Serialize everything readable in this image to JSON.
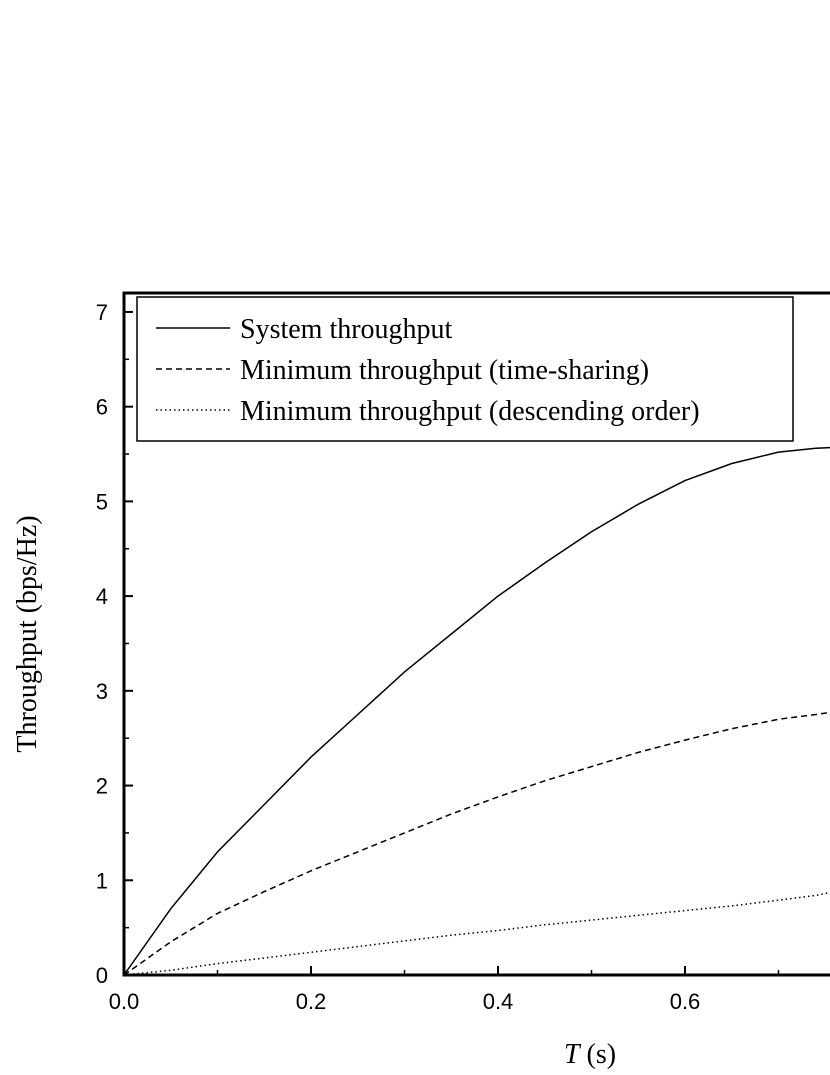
{
  "chart_data": {
    "type": "line",
    "title": "",
    "xlabel_var": "T",
    "xlabel_unit": " (s)",
    "ylabel": "Throughput (bps/Hz)",
    "xlim": [
      0.0,
      0.76
    ],
    "ylim": [
      0,
      7.2
    ],
    "xticks": [
      "0.0",
      "0.2",
      "0.4",
      "0.6"
    ],
    "xtick_values": [
      0.0,
      0.2,
      0.4,
      0.6
    ],
    "yticks": [
      "0",
      "1",
      "2",
      "3",
      "4",
      "5",
      "6",
      "7"
    ],
    "ytick_values": [
      0,
      1,
      2,
      3,
      4,
      5,
      6,
      7
    ],
    "grid": false,
    "legend_position": "top-left",
    "series": [
      {
        "name": "System throughput",
        "style": "solid",
        "x": [
          0.0,
          0.05,
          0.1,
          0.15,
          0.2,
          0.25,
          0.3,
          0.35,
          0.4,
          0.45,
          0.5,
          0.55,
          0.6,
          0.65,
          0.7,
          0.74,
          0.76
        ],
        "y": [
          0.0,
          0.7,
          1.3,
          1.8,
          2.3,
          2.75,
          3.2,
          3.6,
          4.0,
          4.35,
          4.68,
          4.97,
          5.22,
          5.4,
          5.52,
          5.56,
          5.57
        ]
      },
      {
        "name": "Minimum throughput (time-sharing)",
        "style": "dashed",
        "x": [
          0.0,
          0.05,
          0.1,
          0.15,
          0.2,
          0.25,
          0.3,
          0.35,
          0.4,
          0.45,
          0.5,
          0.55,
          0.6,
          0.65,
          0.7,
          0.74,
          0.76
        ],
        "y": [
          0.0,
          0.35,
          0.65,
          0.88,
          1.1,
          1.3,
          1.5,
          1.7,
          1.88,
          2.05,
          2.2,
          2.35,
          2.48,
          2.6,
          2.7,
          2.75,
          2.78
        ]
      },
      {
        "name": "Minimum throughput (descending order)",
        "style": "dotted",
        "x": [
          0.0,
          0.05,
          0.1,
          0.15,
          0.2,
          0.25,
          0.3,
          0.35,
          0.4,
          0.45,
          0.5,
          0.55,
          0.6,
          0.65,
          0.7,
          0.74,
          0.76
        ],
        "y": [
          0.0,
          0.05,
          0.12,
          0.18,
          0.24,
          0.3,
          0.36,
          0.42,
          0.47,
          0.53,
          0.58,
          0.63,
          0.68,
          0.73,
          0.79,
          0.84,
          0.88
        ]
      }
    ]
  }
}
